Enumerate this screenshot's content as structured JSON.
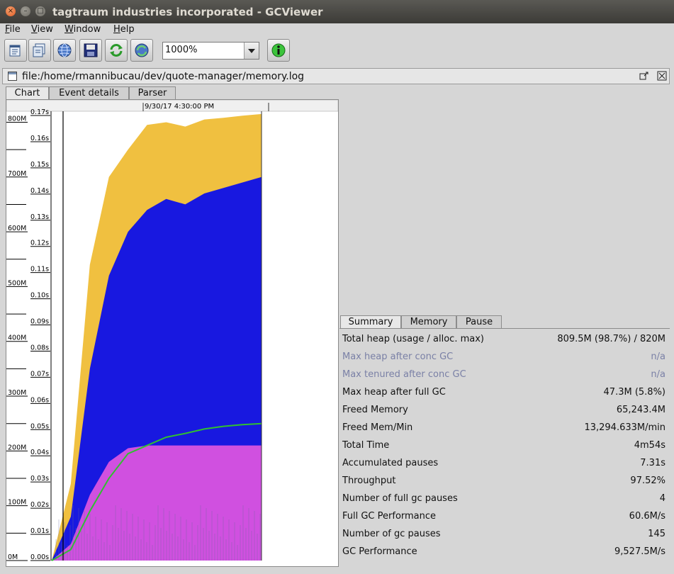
{
  "window": {
    "title": "tagtraum industries incorporated - GCViewer"
  },
  "menu": {
    "items": [
      {
        "label": "File",
        "mnemonic": "F",
        "rest": "ile"
      },
      {
        "label": "View",
        "mnemonic": "V",
        "rest": "iew"
      },
      {
        "label": "Window",
        "mnemonic": "W",
        "rest": "indow"
      },
      {
        "label": "Help",
        "mnemonic": "H",
        "rest": "elp"
      }
    ]
  },
  "toolbar": {
    "buttons": [
      "open-file-icon",
      "recent-files-icon",
      "open-url-icon",
      "export-icon",
      "refresh-icon",
      "watch-icon",
      "about-icon"
    ],
    "zoom_value": "1000%"
  },
  "document": {
    "path": "file:/home/rmannibucau/dev/quote-manager/memory.log"
  },
  "left_tabs": {
    "chart": "Chart",
    "event_details": "Event details",
    "parser": "Parser"
  },
  "chart_data": {
    "type": "area",
    "timestamp_label": "9/30/17 4:30:00 PM",
    "memory_axis": {
      "ticks": [
        "0M",
        "100M",
        "200M",
        "300M",
        "400M",
        "500M",
        "600M",
        "700M",
        "800M"
      ],
      "range": [
        0,
        820
      ]
    },
    "pause_axis": {
      "ticks": [
        "0.00s",
        "0.01s",
        "0.02s",
        "0.03s",
        "0.04s",
        "0.05s",
        "0.06s",
        "0.07s",
        "0.08s",
        "0.09s",
        "0.10s",
        "0.11s",
        "0.12s",
        "0.13s",
        "0.14s",
        "0.15s",
        "0.16s",
        "0.17s"
      ],
      "range": [
        0,
        0.17
      ]
    },
    "series": [
      {
        "color": "#f0c040",
        "values": [
          0,
          140,
          540,
          700,
          750,
          795,
          800,
          792,
          805,
          808,
          812,
          815
        ]
      },
      {
        "color": "#1818e0",
        "values": [
          0,
          80,
          350,
          520,
          600,
          640,
          660,
          650,
          670,
          680,
          690,
          700
        ]
      },
      {
        "color": "#d050e0",
        "values": [
          0,
          30,
          120,
          180,
          205,
          210,
          210,
          210,
          210,
          210,
          210,
          210
        ]
      },
      {
        "color": "#30c030",
        "values": [
          0,
          20,
          90,
          150,
          195,
          210,
          225,
          232,
          240,
          245,
          248,
          250
        ]
      }
    ],
    "grid": false,
    "legend": "none"
  },
  "summary_tabs": {
    "summary": "Summary",
    "memory": "Memory",
    "pause": "Pause"
  },
  "summary": {
    "rows": [
      {
        "label": "Total heap (usage / alloc. max)",
        "value": "809.5M (98.7%) / 820M",
        "dim": false
      },
      {
        "label": "Max heap after conc GC",
        "value": "n/a",
        "dim": true
      },
      {
        "label": "Max tenured after conc GC",
        "value": "n/a",
        "dim": true
      },
      {
        "label": "Max heap after full GC",
        "value": "47.3M (5.8%)",
        "dim": false
      },
      {
        "label": "Freed Memory",
        "value": "65,243.4M",
        "dim": false
      },
      {
        "label": "Freed Mem/Min",
        "value": "13,294.633M/min",
        "dim": false
      },
      {
        "label": "Total Time",
        "value": "4m54s",
        "dim": false
      },
      {
        "label": "Accumulated pauses",
        "value": "7.31s",
        "dim": false
      },
      {
        "label": "Throughput",
        "value": "97.52%",
        "dim": false
      },
      {
        "label": "Number of full gc pauses",
        "value": "4",
        "dim": false
      },
      {
        "label": "Full GC Performance",
        "value": "60.6M/s",
        "dim": false
      },
      {
        "label": "Number of gc pauses",
        "value": "145",
        "dim": false
      },
      {
        "label": "GC Performance",
        "value": "9,527.5M/s",
        "dim": false
      }
    ]
  }
}
